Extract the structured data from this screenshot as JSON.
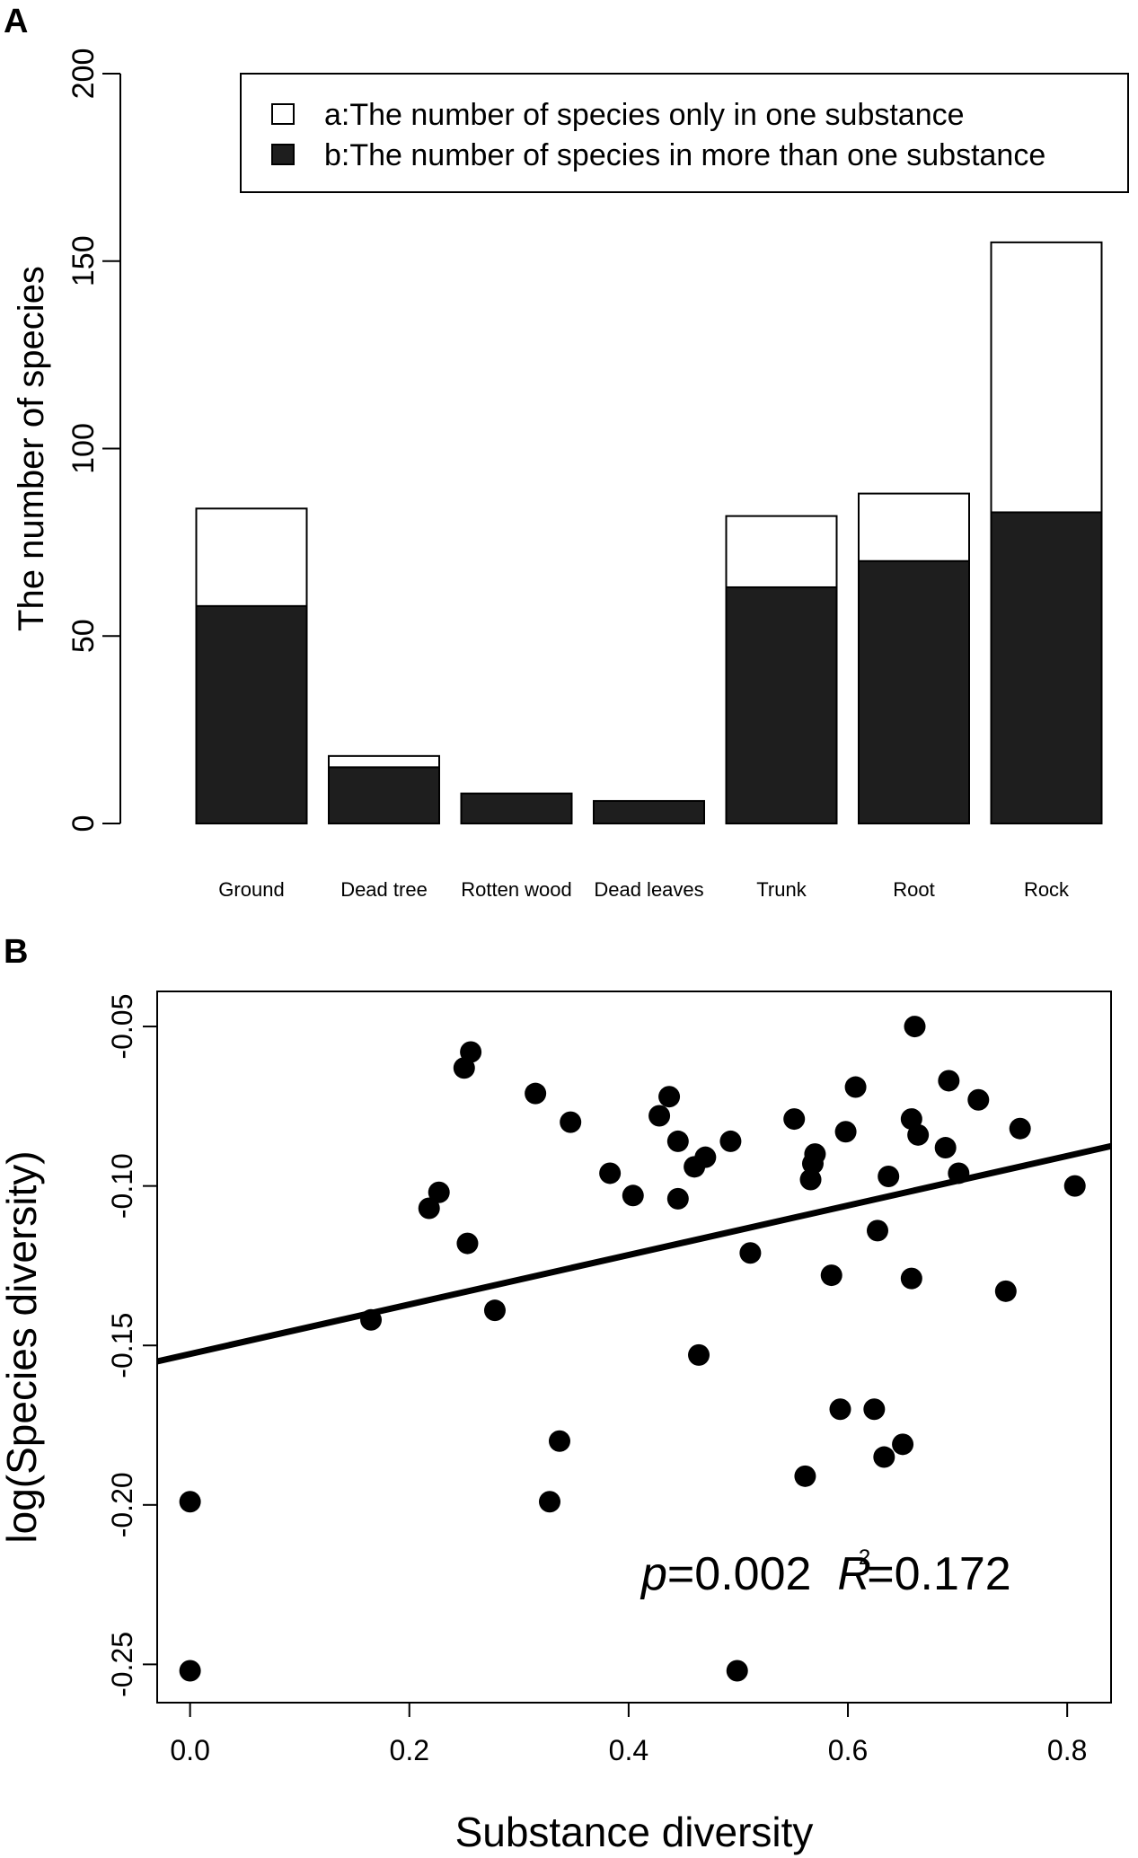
{
  "panel_labels": {
    "a": "A",
    "b": "B"
  },
  "chart_data": [
    {
      "type": "bar",
      "stacked": true,
      "title": "",
      "xlabel": "",
      "ylabel": "The number of species",
      "ylim": [
        0,
        200
      ],
      "yticks": [
        "0",
        "50",
        "100",
        "150",
        "200"
      ],
      "ytick_values": [
        0,
        50,
        100,
        150,
        200
      ],
      "categories": [
        "Ground",
        "Dead tree",
        "Rotten wood",
        "Dead leaves",
        "Trunk",
        "Root",
        "Rock"
      ],
      "series": [
        {
          "name": "b:The number of species in more than one substance",
          "color": "#1e1e1e",
          "values": [
            58,
            15,
            8,
            6,
            63,
            70,
            83
          ]
        },
        {
          "name": "a:The number of species only in one substance",
          "color": "#ffffff",
          "values": [
            26,
            3,
            0,
            0,
            19,
            18,
            72
          ]
        }
      ],
      "legend": {
        "position": "top-right",
        "entries": [
          {
            "label": "a:The number of species only in one substance",
            "fill": "#ffffff"
          },
          {
            "label": "b:The number of species in more than one substance",
            "fill": "#1e1e1e"
          }
        ]
      }
    },
    {
      "type": "scatter",
      "title": "",
      "xlabel": "Substance diversity",
      "ylabel": "log(Species diversity)",
      "xlim": [
        -0.03,
        0.84
      ],
      "ylim": [
        -0.262,
        -0.039
      ],
      "xticks": [
        "0.0",
        "0.2",
        "0.4",
        "0.6",
        "0.8"
      ],
      "xtick_values": [
        0.0,
        0.2,
        0.4,
        0.6,
        0.8
      ],
      "yticks": [
        "-0.05",
        "-0.10",
        "-0.15",
        "-0.20",
        "-0.25"
      ],
      "ytick_values": [
        -0.05,
        -0.1,
        -0.15,
        -0.2,
        -0.25
      ],
      "points": [
        [
          0.0,
          -0.199
        ],
        [
          0.0,
          -0.252
        ],
        [
          0.165,
          -0.142
        ],
        [
          0.218,
          -0.107
        ],
        [
          0.227,
          -0.102
        ],
        [
          0.25,
          -0.063
        ],
        [
          0.253,
          -0.118
        ],
        [
          0.256,
          -0.058
        ],
        [
          0.278,
          -0.139
        ],
        [
          0.315,
          -0.071
        ],
        [
          0.328,
          -0.199
        ],
        [
          0.337,
          -0.18
        ],
        [
          0.347,
          -0.08
        ],
        [
          0.383,
          -0.096
        ],
        [
          0.404,
          -0.103
        ],
        [
          0.428,
          -0.078
        ],
        [
          0.437,
          -0.072
        ],
        [
          0.445,
          -0.086
        ],
        [
          0.445,
          -0.104
        ],
        [
          0.46,
          -0.094
        ],
        [
          0.464,
          -0.153
        ],
        [
          0.47,
          -0.091
        ],
        [
          0.493,
          -0.086
        ],
        [
          0.499,
          -0.252
        ],
        [
          0.511,
          -0.121
        ],
        [
          0.551,
          -0.079
        ],
        [
          0.561,
          -0.191
        ],
        [
          0.566,
          -0.098
        ],
        [
          0.568,
          -0.093
        ],
        [
          0.57,
          -0.09
        ],
        [
          0.585,
          -0.128
        ],
        [
          0.593,
          -0.17
        ],
        [
          0.598,
          -0.083
        ],
        [
          0.607,
          -0.069
        ],
        [
          0.624,
          -0.17
        ],
        [
          0.627,
          -0.114
        ],
        [
          0.633,
          -0.185
        ],
        [
          0.637,
          -0.097
        ],
        [
          0.65,
          -0.181
        ],
        [
          0.658,
          -0.079
        ],
        [
          0.658,
          -0.129
        ],
        [
          0.661,
          -0.05
        ],
        [
          0.664,
          -0.084
        ],
        [
          0.689,
          -0.088
        ],
        [
          0.692,
          -0.067
        ],
        [
          0.701,
          -0.096
        ],
        [
          0.719,
          -0.073
        ],
        [
          0.744,
          -0.133
        ],
        [
          0.757,
          -0.082
        ],
        [
          0.807,
          -0.1
        ]
      ],
      "regression_line": {
        "x": [
          -0.03,
          0.84
        ],
        "y": [
          -0.155,
          -0.0875
        ]
      },
      "annotation": {
        "p_symbol": "p",
        "p_value": "=0.002  ",
        "r_symbol": "R",
        "r_superscript": "2",
        "r_value": "=0.172"
      }
    }
  ]
}
